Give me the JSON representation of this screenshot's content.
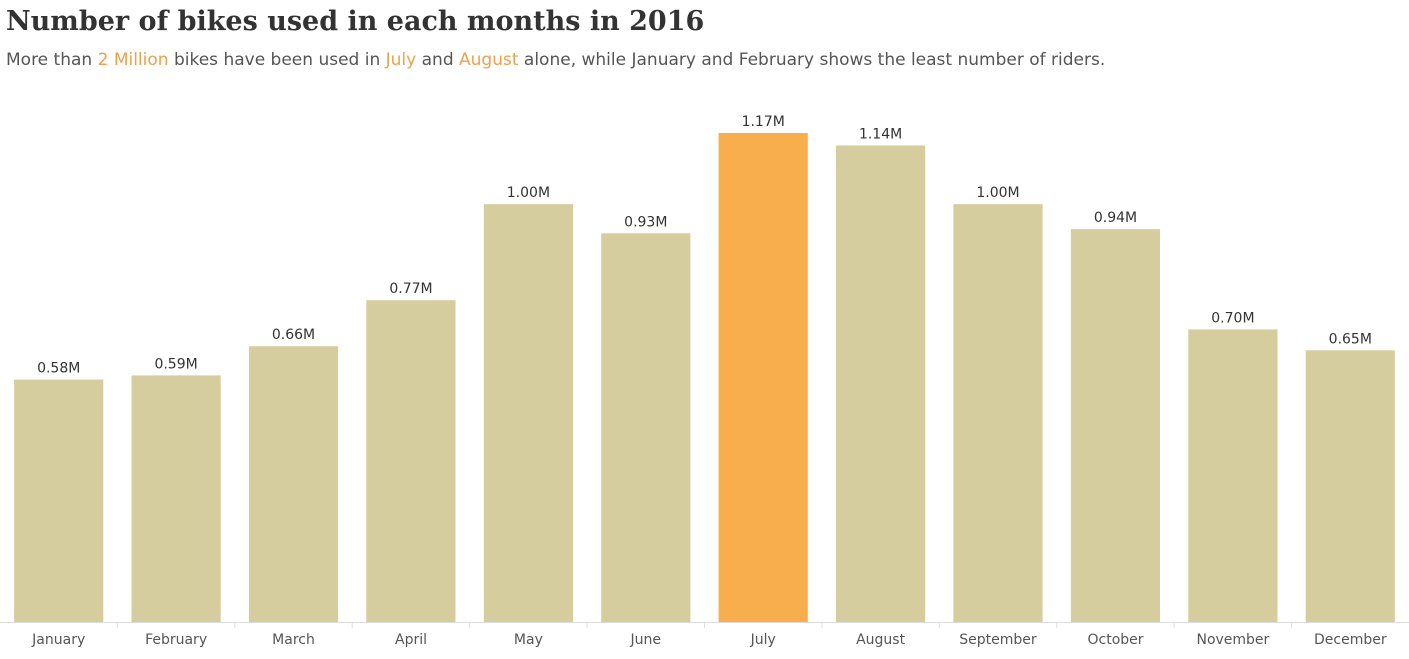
{
  "header": {
    "title": "Number of bikes used in each months in 2016",
    "subtitle_parts": [
      {
        "text": "More than ",
        "highlight": false
      },
      {
        "text": "2 Million",
        "highlight": true
      },
      {
        "text": " bikes have  been used in ",
        "highlight": false
      },
      {
        "text": "July",
        "highlight": true
      },
      {
        "text": " and ",
        "highlight": false
      },
      {
        "text": "August",
        "highlight": true
      },
      {
        "text": " alone, while January and February shows the least number of riders.",
        "highlight": false
      }
    ]
  },
  "colors": {
    "bar": "#d6cd9e",
    "highlight_bar": "#f8ae4c",
    "highlight_text": "#f0a04b",
    "label_text": "#333333",
    "axis_text": "#555555",
    "axis_line": "#dddddd"
  },
  "chart_data": {
    "type": "bar",
    "categories": [
      "January",
      "February",
      "March",
      "April",
      "May",
      "June",
      "July",
      "August",
      "September",
      "October",
      "November",
      "December"
    ],
    "values": [
      0.58,
      0.59,
      0.66,
      0.77,
      1.0,
      0.93,
      1.17,
      1.14,
      1.0,
      0.94,
      0.7,
      0.65
    ],
    "data_labels": [
      "0.58M",
      "0.59M",
      "0.66M",
      "0.77M",
      "1.00M",
      "0.93M",
      "1.17M",
      "1.14M",
      "1.00M",
      "0.94M",
      "0.70M",
      "0.65M"
    ],
    "highlight": [
      "July"
    ],
    "unit": "M",
    "ylim": [
      0,
      1.17
    ],
    "title": "Number of bikes used in each months in 2016",
    "xlabel": "",
    "ylabel": "",
    "grid": false
  }
}
